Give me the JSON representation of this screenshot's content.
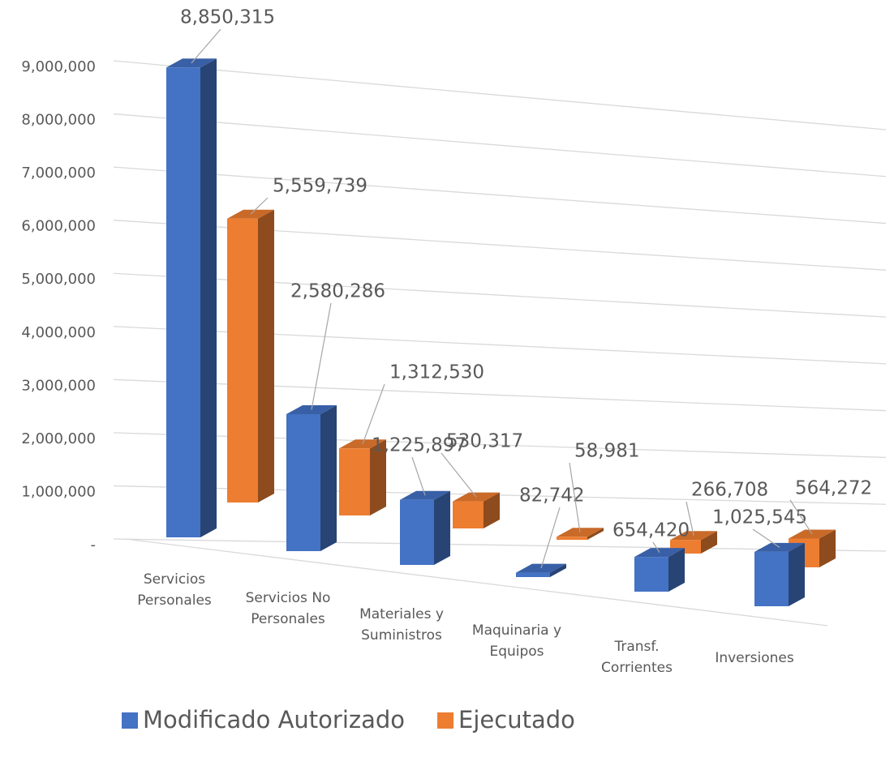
{
  "chart_data": {
    "type": "bar3d",
    "categories": [
      [
        "Servicios",
        "Personales"
      ],
      [
        "Servicios No",
        "Personales"
      ],
      [
        "Materiales y",
        "Suministros"
      ],
      [
        "Maquinaria y",
        "Equipos"
      ],
      [
        "Transf.",
        "Corrientes"
      ],
      [
        "Inversiones"
      ]
    ],
    "series": [
      {
        "name": "Modificado Autorizado",
        "color": "#4472c4",
        "values": [
          8850315,
          2580286,
          1225897,
          82742,
          654420,
          1025545
        ],
        "value_labels": [
          "8,850,315",
          "2,580,286",
          "1,225,897",
          "82,742",
          "654,420",
          "1,025,545"
        ]
      },
      {
        "name": "Ejecutado",
        "color": "#ed7d31",
        "values": [
          5559739,
          1312530,
          530317,
          58981,
          266708,
          564272
        ],
        "value_labels": [
          "5,559,739",
          "1,312,530",
          "530,317",
          "58,981",
          "266,708",
          "564,272"
        ]
      }
    ],
    "ylim": [
      0,
      9000000
    ],
    "yticks": [
      {
        "value": 0,
        "label": "-"
      },
      {
        "value": 1000000,
        "label": "1,000,000"
      },
      {
        "value": 2000000,
        "label": "2,000,000"
      },
      {
        "value": 3000000,
        "label": "3,000,000"
      },
      {
        "value": 4000000,
        "label": "4,000,000"
      },
      {
        "value": 5000000,
        "label": "5,000,000"
      },
      {
        "value": 6000000,
        "label": "6,000,000"
      },
      {
        "value": 7000000,
        "label": "7,000,000"
      },
      {
        "value": 8000000,
        "label": "8,000,000"
      },
      {
        "value": 9000000,
        "label": "9,000,000"
      }
    ],
    "grid": true,
    "legend": "bottom"
  }
}
